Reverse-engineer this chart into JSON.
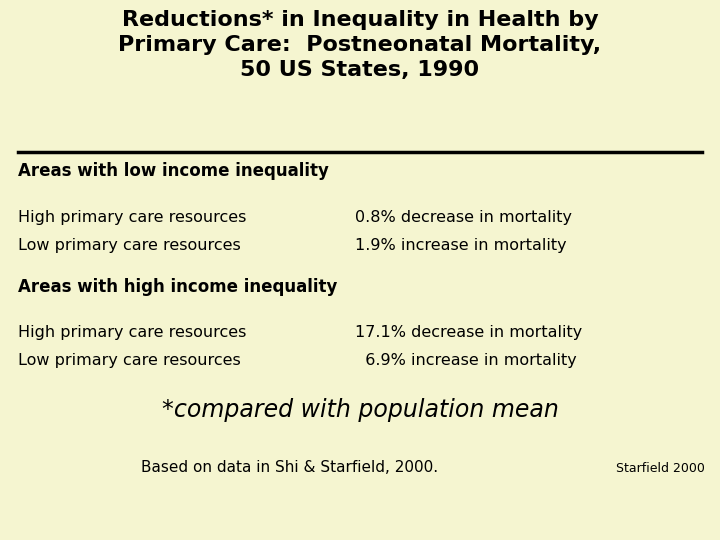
{
  "background_color": "#f5f5d0",
  "title_line1": "Reductions* in Inequality in Health by",
  "title_line2": "Primary Care:  Postneonatal Mortality,",
  "title_line3": "50 US States, 1990",
  "section1_header": "Areas with low income inequality",
  "section1_row1_left": "High primary care resources",
  "section1_row1_right": "0.8% decrease in mortality",
  "section1_row2_left": "Low primary care resources",
  "section1_row2_right": "1.9% increase in mortality",
  "section2_header": "Areas with high income inequality",
  "section2_row1_left": "High primary care resources",
  "section2_row1_right": "17.1% decrease in mortality",
  "section2_row2_left": "Low primary care resources",
  "section2_row2_right": "  6.9% increase in mortality",
  "footnote": "*compared with population mean",
  "citation": "Based on data in Shi & Starfield, 2000.",
  "source": "Starfield 2000",
  "title_fontsize": 16,
  "header_fontsize": 12,
  "body_fontsize": 11.5,
  "footnote_fontsize": 17,
  "citation_fontsize": 11,
  "source_fontsize": 9
}
